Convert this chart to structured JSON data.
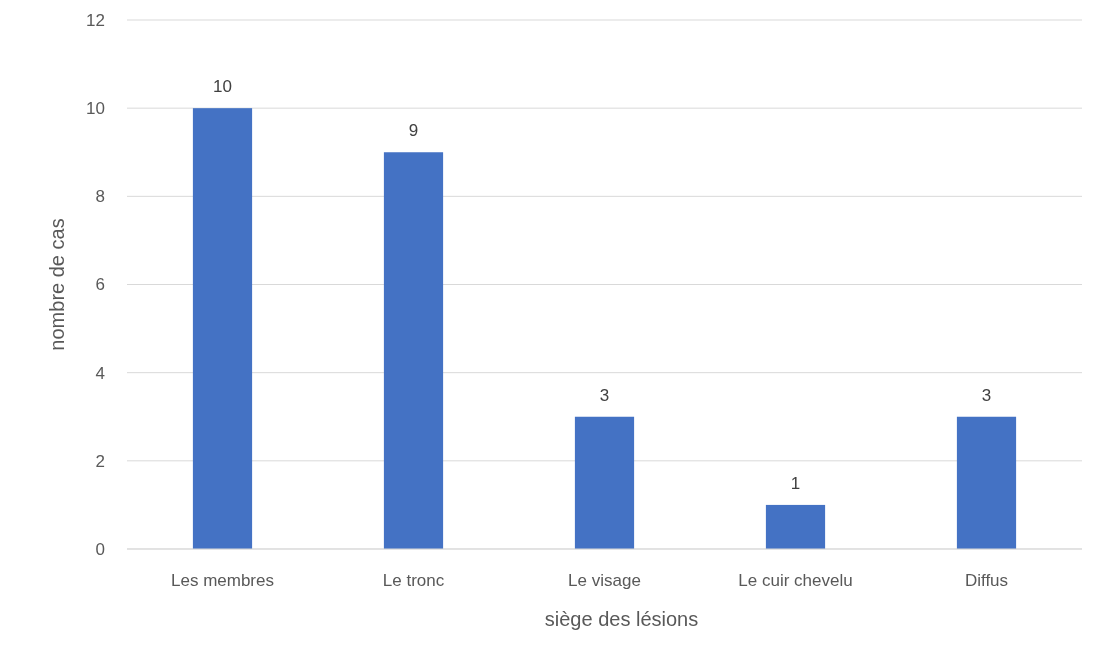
{
  "chart_data": {
    "type": "bar",
    "xlabel": "siège des lésions",
    "ylabel": "nombre de cas",
    "categories": [
      "Les membres",
      "Le tronc",
      "Le visage",
      "Le cuir chevelu",
      "Diffus"
    ],
    "values": [
      10,
      9,
      3,
      1,
      3
    ],
    "color": "#4472c4",
    "ylim": [
      0,
      12
    ],
    "yticks": [
      0,
      2,
      4,
      6,
      8,
      10,
      12
    ],
    "grid": "y",
    "data_labels": true
  }
}
